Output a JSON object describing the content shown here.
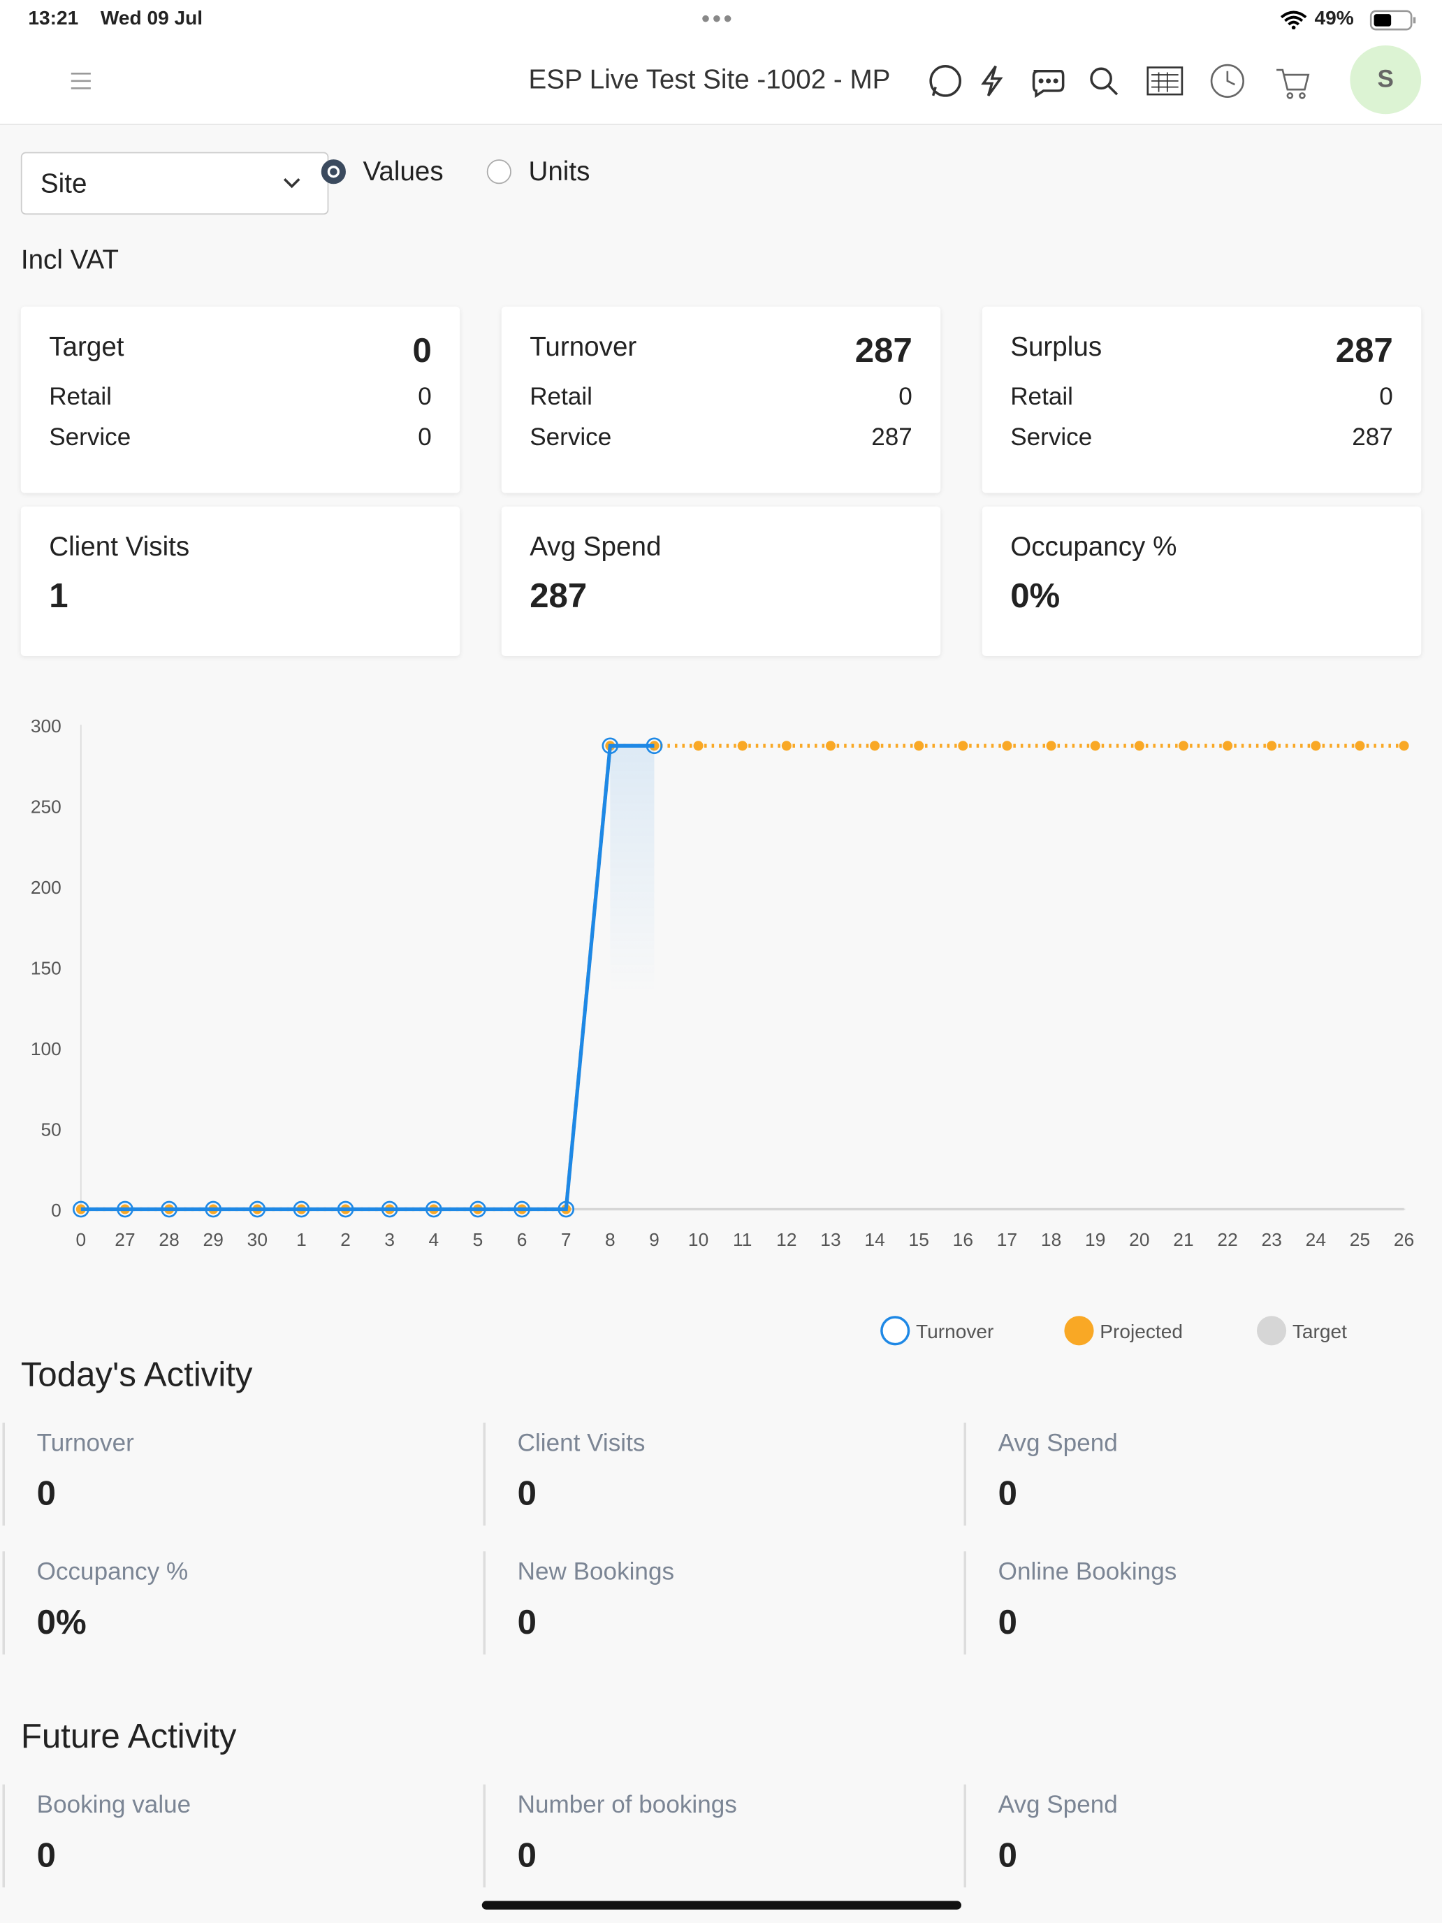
{
  "status_bar": {
    "time": "13:21",
    "date": "Wed 09 Jul",
    "battery": "49%"
  },
  "header": {
    "title": "ESP Live Test Site -1002 - MP",
    "avatar": "S"
  },
  "filters": {
    "dropdown": "Site",
    "options": [
      "Values",
      "Units"
    ],
    "selected": 0
  },
  "vat_label": "Incl VAT",
  "summary_cards": [
    {
      "title": "Target",
      "value": 0,
      "rows": [
        {
          "label": "Retail",
          "value": 0
        },
        {
          "label": "Service",
          "value": 0
        }
      ]
    },
    {
      "title": "Turnover",
      "value": 287,
      "rows": [
        {
          "label": "Retail",
          "value": 0
        },
        {
          "label": "Service",
          "value": 287
        }
      ]
    },
    {
      "title": "Surplus",
      "value": 287,
      "rows": [
        {
          "label": "Retail",
          "value": 0
        },
        {
          "label": "Service",
          "value": 287
        }
      ]
    },
    {
      "title": "Client Visits",
      "value": 1
    },
    {
      "title": "Avg Spend",
      "value": 287
    },
    {
      "title": "Occupancy %",
      "value": "0%"
    }
  ],
  "chart_data": {
    "type": "line",
    "categories": [
      "0",
      "27",
      "28",
      "29",
      "30",
      "1",
      "2",
      "3",
      "4",
      "5",
      "6",
      "7",
      "8",
      "9",
      "10",
      "11",
      "12",
      "13",
      "14",
      "15",
      "16",
      "17",
      "18",
      "19",
      "20",
      "21",
      "22",
      "23",
      "24",
      "25",
      "26"
    ],
    "series": [
      {
        "name": "Turnover",
        "color": "#1e88e5",
        "values": [
          0,
          0,
          0,
          0,
          0,
          0,
          0,
          0,
          0,
          0,
          0,
          0,
          287,
          287,
          null,
          null,
          null,
          null,
          null,
          null,
          null,
          null,
          null,
          null,
          null,
          null,
          null,
          null,
          null,
          null,
          null
        ]
      },
      {
        "name": "Projected",
        "color": "#f9a825",
        "values": [
          0,
          0,
          0,
          0,
          0,
          0,
          0,
          0,
          0,
          0,
          0,
          0,
          287,
          287,
          287,
          287,
          287,
          287,
          287,
          287,
          287,
          287,
          287,
          287,
          287,
          287,
          287,
          287,
          287,
          287,
          287
        ]
      },
      {
        "name": "Target",
        "color": "#d6d6d6",
        "values": [
          0,
          0,
          0,
          0,
          0,
          0,
          0,
          0,
          0,
          0,
          0,
          0,
          0,
          0,
          0,
          0,
          0,
          0,
          0,
          0,
          0,
          0,
          0,
          0,
          0,
          0,
          0,
          0,
          0,
          0,
          0
        ]
      }
    ],
    "ylim": [
      0,
      300
    ],
    "yticks": [
      0,
      50,
      100,
      150,
      200,
      250,
      300
    ],
    "grid": false,
    "legend": "bottom"
  },
  "todays_activity": {
    "title": "Today's Activity",
    "tiles": [
      {
        "label": "Turnover",
        "value": 0
      },
      {
        "label": "Client Visits",
        "value": 0
      },
      {
        "label": "Avg Spend",
        "value": 0
      },
      {
        "label": "Occupancy %",
        "value": "0%"
      },
      {
        "label": "New Bookings",
        "value": 0
      },
      {
        "label": "Online Bookings",
        "value": 0
      }
    ]
  },
  "future_activity": {
    "title": "Future Activity",
    "tiles": [
      {
        "label": "Booking value",
        "value": 0
      },
      {
        "label": "Number of bookings",
        "value": 0
      },
      {
        "label": "Avg Spend",
        "value": 0
      }
    ]
  }
}
